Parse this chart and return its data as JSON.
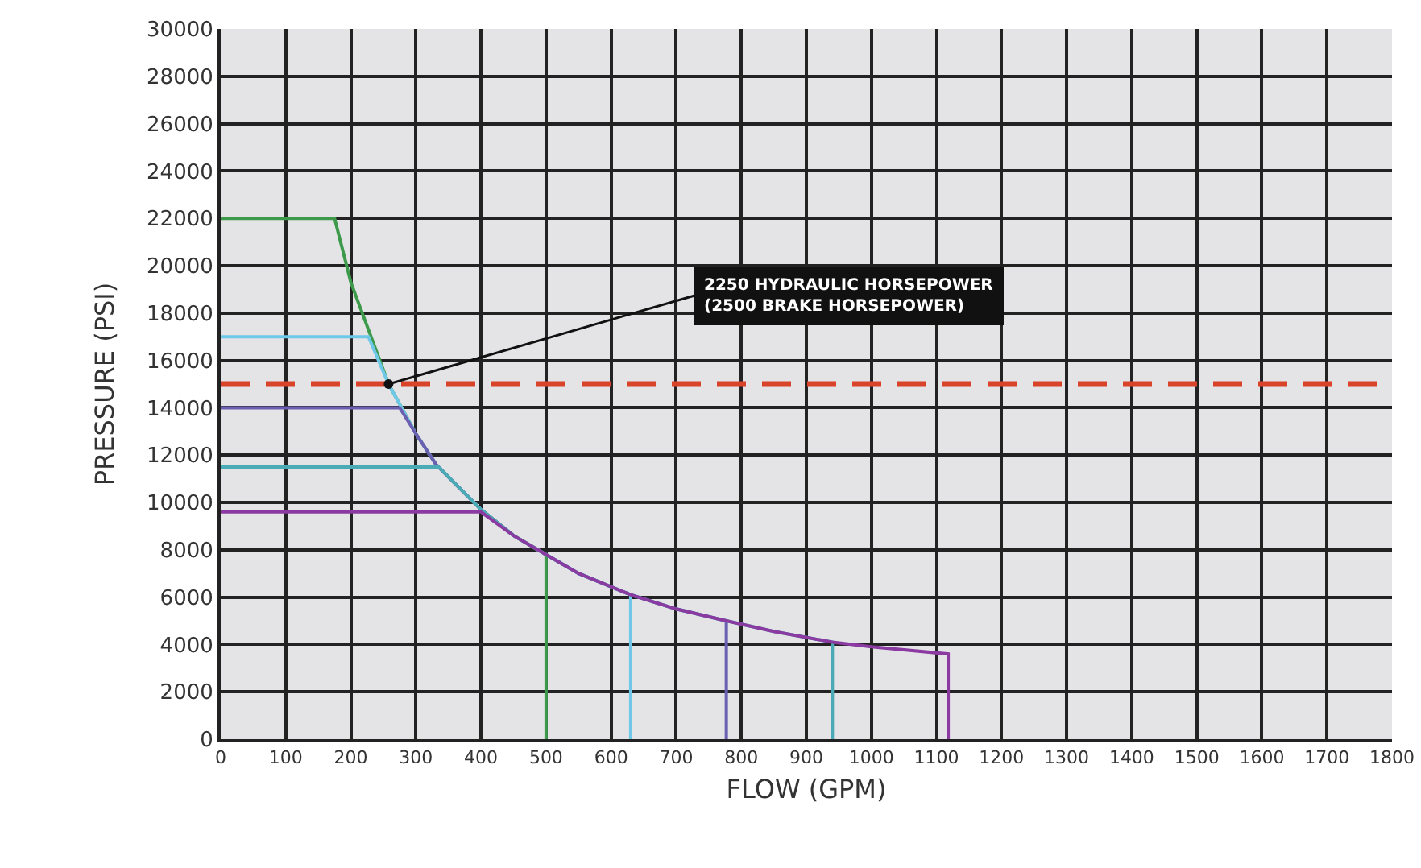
{
  "chart_data": {
    "type": "line",
    "xlabel": "FLOW (GPM)",
    "ylabel": "PRESSURE (PSI)",
    "xlim": [
      0,
      1800
    ],
    "ylim": [
      0,
      30000
    ],
    "xticks": [
      0,
      100,
      200,
      300,
      400,
      500,
      600,
      700,
      800,
      900,
      1000,
      1100,
      1200,
      1300,
      1400,
      1500,
      1600,
      1700,
      1800
    ],
    "yticks": [
      0,
      2000,
      4000,
      6000,
      8000,
      10000,
      12000,
      14000,
      16000,
      18000,
      20000,
      22000,
      24000,
      26000,
      28000,
      30000
    ],
    "grid": true,
    "marker": "none",
    "line_style": "solid",
    "series": [
      {
        "color": "#3c9a4a",
        "x": [
          0,
          175,
          200,
          258,
          300,
          331,
          400,
          450,
          500,
          500
        ],
        "values": [
          22000,
          22000,
          19300,
          15000,
          12900,
          11600,
          9700,
          8600,
          7800,
          0
        ]
      },
      {
        "color": "#70c8e8",
        "x": [
          0,
          227,
          258,
          300,
          331,
          400,
          450,
          500,
          550,
          630,
          630
        ],
        "values": [
          17000,
          17000,
          15000,
          12900,
          11600,
          9700,
          8600,
          7800,
          7000,
          6100,
          0
        ]
      },
      {
        "color": "#6a5fb0",
        "x": [
          0,
          275,
          300,
          331,
          400,
          450,
          500,
          550,
          630,
          700,
          777,
          777
        ],
        "values": [
          14000,
          14000,
          12900,
          11600,
          9700,
          8600,
          7800,
          7000,
          6100,
          5500,
          5000,
          0
        ]
      },
      {
        "color": "#4aaab5",
        "x": [
          0,
          335,
          400,
          450,
          500,
          550,
          630,
          700,
          777,
          850,
          940,
          940
        ],
        "values": [
          11500,
          11500,
          9700,
          8600,
          7800,
          7000,
          6100,
          5500,
          5000,
          4550,
          4100,
          0
        ]
      },
      {
        "color": "#8a3aa0",
        "x": [
          0,
          400,
          450,
          500,
          550,
          630,
          700,
          777,
          850,
          940,
          1000,
          1118,
          1118
        ],
        "values": [
          9600,
          9600,
          8600,
          7800,
          7000,
          6100,
          5500,
          5000,
          4550,
          4100,
          3900,
          3600,
          0
        ]
      }
    ],
    "ref_lines": [
      {
        "axis": "y",
        "value": 15000,
        "label": null,
        "color": "#d9432a",
        "line_style": "dashed"
      }
    ],
    "annotations": [
      {
        "text": "2250 HYDRAULIC HORSEPOWER\n(2500 BRAKE HORSEPOWER)",
        "x": 258,
        "y": 15000
      }
    ]
  }
}
